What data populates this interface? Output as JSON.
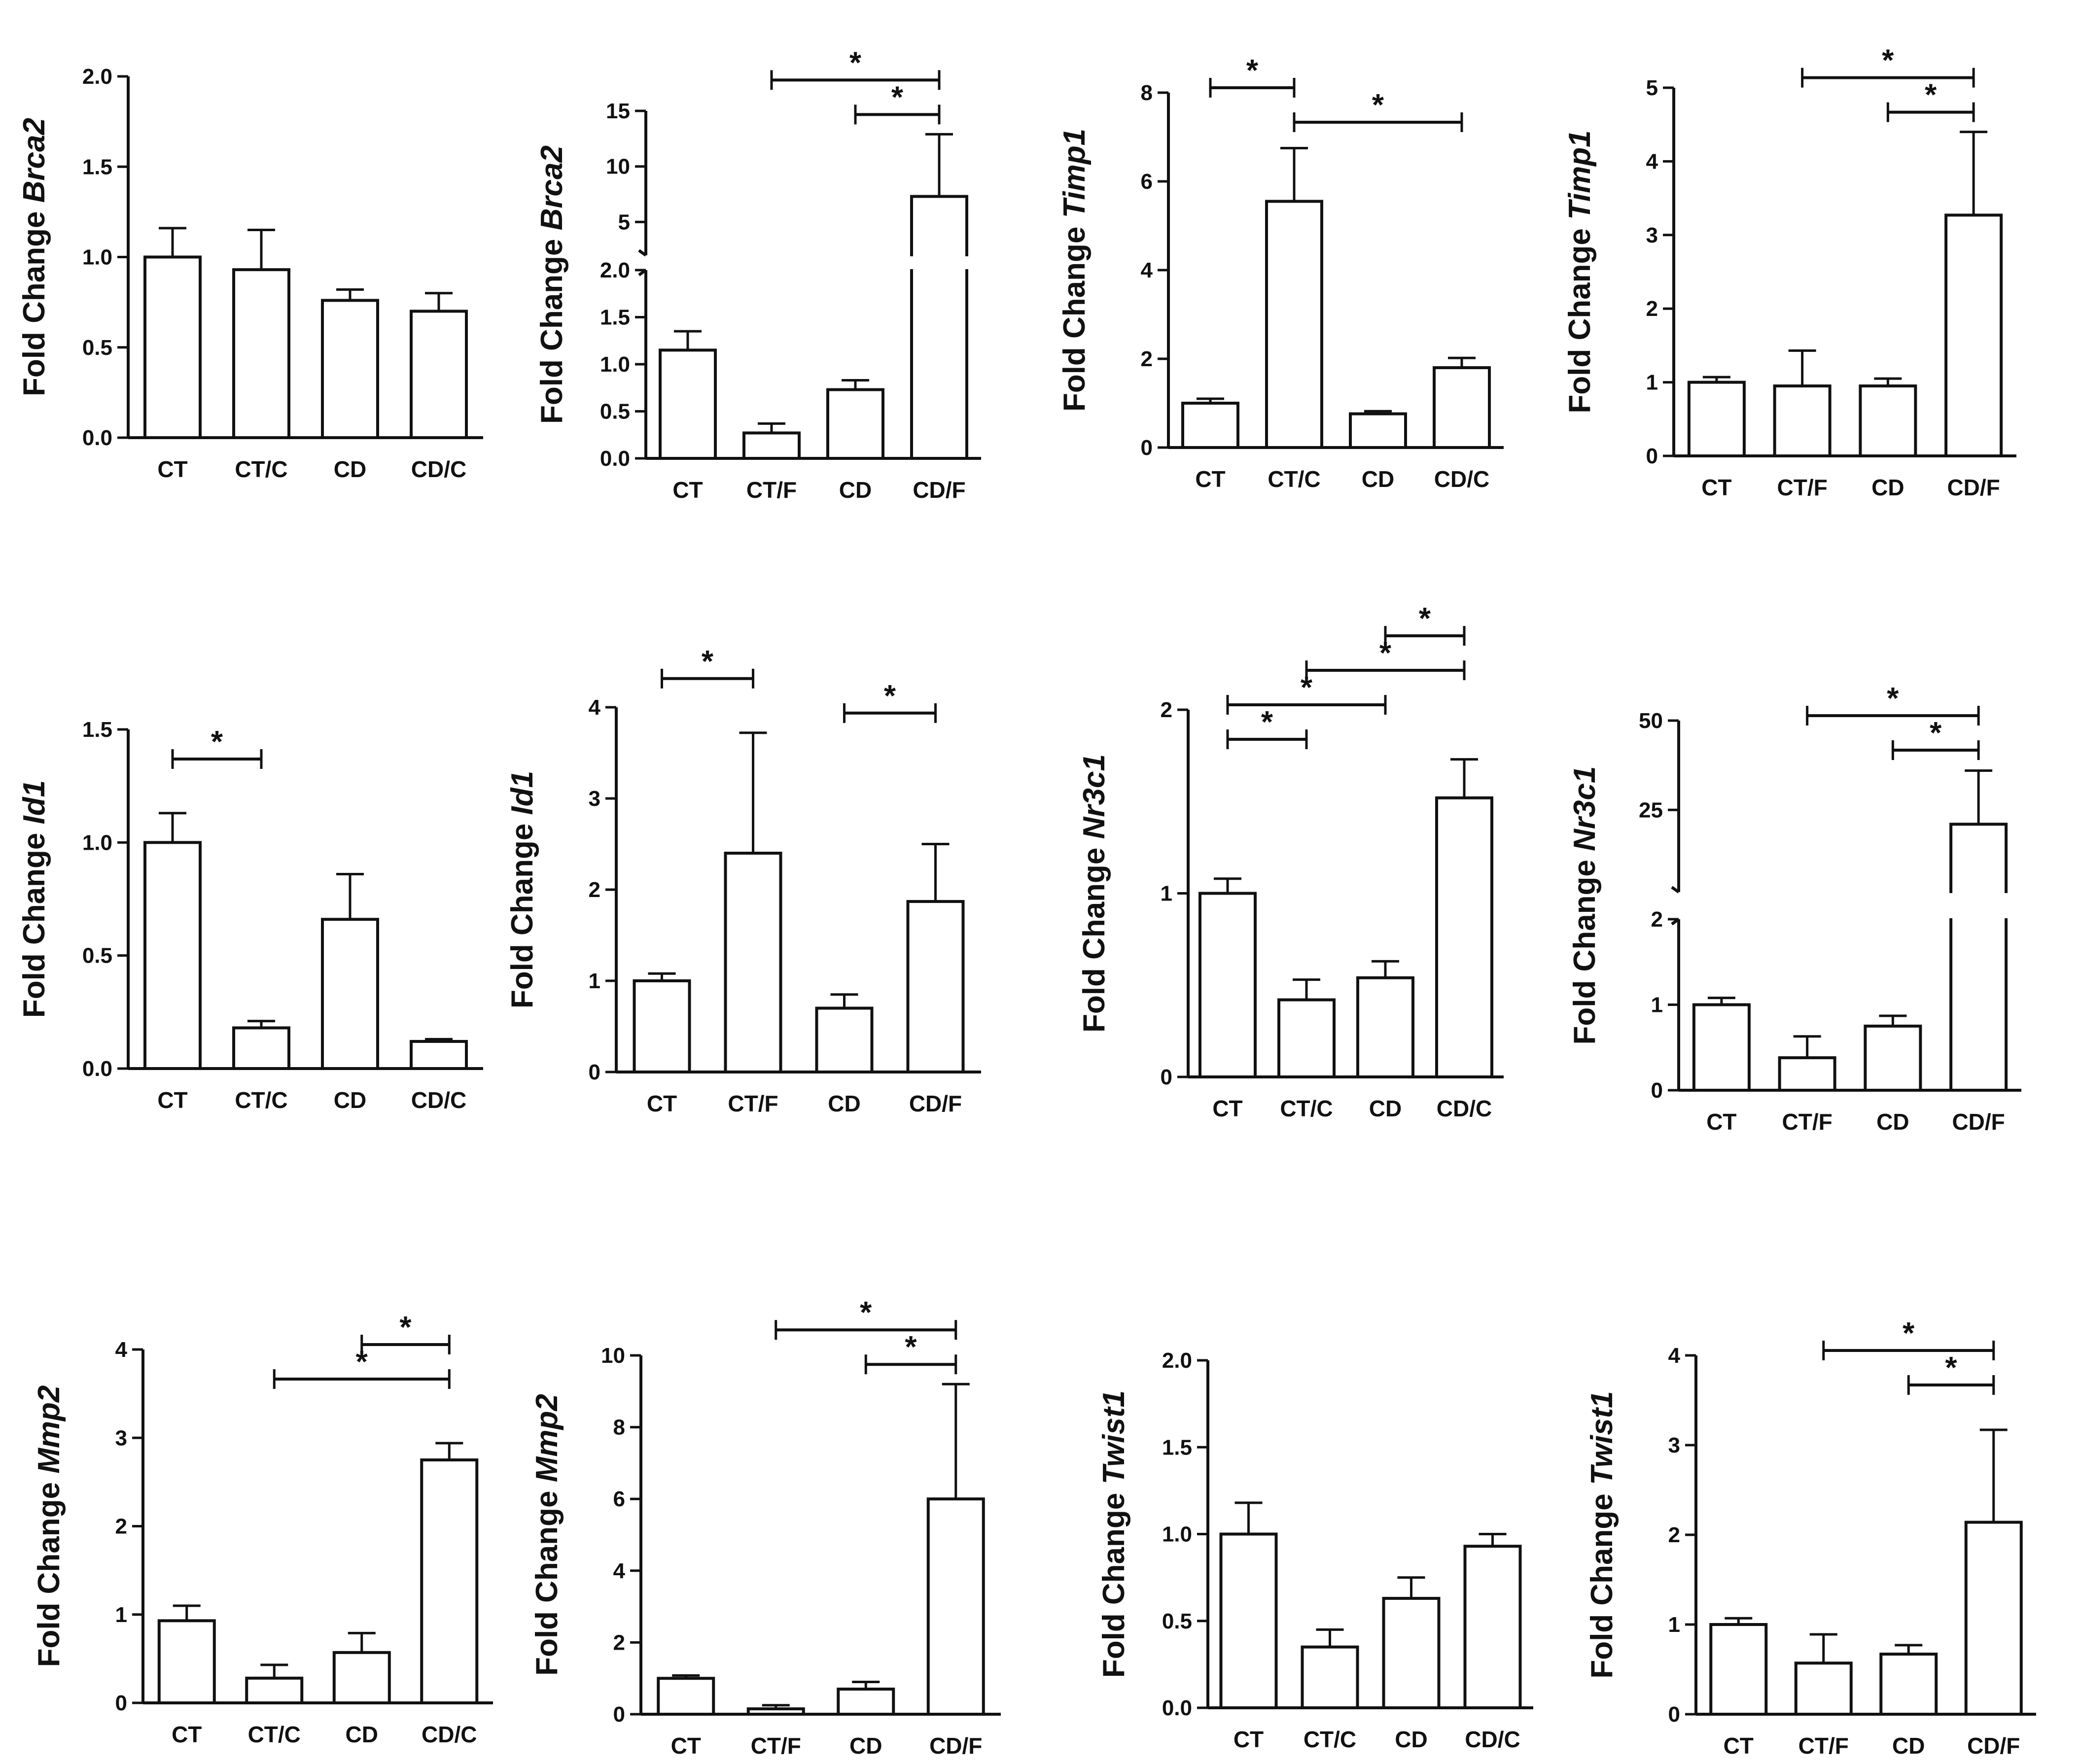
{
  "chart_data": [
    {
      "type": "bar",
      "ylabel_prefix": "Fold Change",
      "gene": "Brca2",
      "categories": [
        "CT",
        "CT/C",
        "CD",
        "CD/C"
      ],
      "values": [
        1.0,
        0.93,
        0.76,
        0.7
      ],
      "errors": [
        0.16,
        0.22,
        0.06,
        0.1
      ],
      "ylim": [
        0,
        2.0
      ],
      "ticks": [
        "0.0",
        "0.5",
        "1.0",
        "1.5",
        "2.0"
      ],
      "significance": []
    },
    {
      "type": "bar",
      "ylabel_prefix": "Fold Change",
      "gene": "Brca2",
      "categories": [
        "CT",
        "CT/F",
        "CD",
        "CD/F"
      ],
      "values": [
        1.15,
        0.27,
        0.73,
        7.3
      ],
      "errors": [
        0.2,
        0.1,
        0.1,
        5.6
      ],
      "axis_break": {
        "lower": [
          0,
          2.0
        ],
        "upper": [
          2.0,
          15
        ]
      },
      "ticks_lower": [
        "0.0",
        "0.5",
        "1.0",
        "1.5",
        "2.0"
      ],
      "ticks_upper": [
        "5",
        "10",
        "15"
      ],
      "significance": [
        {
          "from": 1,
          "to": 3,
          "label": "*"
        },
        {
          "from": 2,
          "to": 3,
          "label": "*"
        }
      ]
    },
    {
      "type": "bar",
      "ylabel_prefix": "Fold Change",
      "gene": "Timp1",
      "categories": [
        "CT",
        "CT/C",
        "CD",
        "CD/C"
      ],
      "values": [
        1.0,
        5.55,
        0.76,
        1.8
      ],
      "errors": [
        0.1,
        1.2,
        0.06,
        0.22
      ],
      "ylim": [
        0,
        8
      ],
      "ticks": [
        "0",
        "2",
        "4",
        "6",
        "8"
      ],
      "significance": [
        {
          "from": 0,
          "to": 1,
          "label": "*"
        },
        {
          "from": 1,
          "to": 3,
          "label": "*"
        }
      ]
    },
    {
      "type": "bar",
      "ylabel_prefix": "Fold Change",
      "gene": "Timp1",
      "categories": [
        "CT",
        "CT/F",
        "CD",
        "CD/F"
      ],
      "values": [
        1.0,
        0.95,
        0.95,
        3.27
      ],
      "errors": [
        0.07,
        0.48,
        0.1,
        1.13
      ],
      "ylim": [
        0,
        5
      ],
      "ticks": [
        "0",
        "1",
        "2",
        "3",
        "4",
        "5"
      ],
      "significance": [
        {
          "from": 1,
          "to": 3,
          "label": "*"
        },
        {
          "from": 2,
          "to": 3,
          "label": "*"
        }
      ]
    },
    {
      "type": "bar",
      "ylabel_prefix": "Fold Change",
      "gene": "Id1",
      "categories": [
        "CT",
        "CT/C",
        "CD",
        "CD/C"
      ],
      "values": [
        1.0,
        0.18,
        0.66,
        0.12
      ],
      "errors": [
        0.13,
        0.03,
        0.2,
        0.01
      ],
      "ylim": [
        0,
        1.5
      ],
      "ticks": [
        "0.0",
        "0.5",
        "1.0",
        "1.5"
      ],
      "significance": [
        {
          "from": 0,
          "to": 1,
          "label": "*"
        }
      ]
    },
    {
      "type": "bar",
      "ylabel_prefix": "Fold Change",
      "gene": "Id1",
      "categories": [
        "CT",
        "CT/F",
        "CD",
        "CD/F"
      ],
      "values": [
        1.0,
        2.4,
        0.7,
        1.87
      ],
      "errors": [
        0.08,
        1.32,
        0.15,
        0.63
      ],
      "ylim": [
        0,
        4
      ],
      "ticks": [
        "0",
        "1",
        "2",
        "3",
        "4"
      ],
      "significance": [
        {
          "from": 0,
          "to": 1,
          "label": "*"
        },
        {
          "from": 2,
          "to": 3,
          "label": "*"
        }
      ]
    },
    {
      "type": "bar",
      "ylabel_prefix": "Fold Change",
      "gene": "Nr3c1",
      "categories": [
        "CT",
        "CT/C",
        "CD",
        "CD/C"
      ],
      "values": [
        1.0,
        0.42,
        0.54,
        1.52
      ],
      "errors": [
        0.08,
        0.11,
        0.09,
        0.21
      ],
      "ylim": [
        0,
        2
      ],
      "ticks": [
        "0",
        "1",
        "2"
      ],
      "significance": [
        {
          "from": 2,
          "to": 3,
          "label": "*"
        },
        {
          "from": 1,
          "to": 3,
          "label": "*"
        },
        {
          "from": 0,
          "to": 2,
          "label": "*"
        },
        {
          "from": 0,
          "to": 1,
          "label": "*"
        }
      ]
    },
    {
      "type": "bar",
      "ylabel_prefix": "Fold Change",
      "gene": "Nr3c1",
      "categories": [
        "CT",
        "CT/F",
        "CD",
        "CD/F"
      ],
      "values": [
        1.0,
        0.38,
        0.75,
        21.0
      ],
      "errors": [
        0.08,
        0.25,
        0.12,
        15.0
      ],
      "axis_break": {
        "lower": [
          0,
          2
        ],
        "upper": [
          2,
          50
        ]
      },
      "ticks_lower": [
        "0",
        "1",
        "2"
      ],
      "ticks_upper": [
        "25",
        "50"
      ],
      "significance": [
        {
          "from": 1,
          "to": 3,
          "label": "*"
        },
        {
          "from": 2,
          "to": 3,
          "label": "*"
        }
      ]
    },
    {
      "type": "bar",
      "ylabel_prefix": "Fold Change",
      "gene": "Mmp2",
      "categories": [
        "CT",
        "CT/C",
        "CD",
        "CD/C"
      ],
      "values": [
        0.93,
        0.28,
        0.57,
        2.75
      ],
      "errors": [
        0.17,
        0.15,
        0.22,
        0.19
      ],
      "ylim": [
        0,
        4
      ],
      "ticks": [
        "0",
        "1",
        "2",
        "3",
        "4"
      ],
      "significance": [
        {
          "from": 2,
          "to": 3,
          "label": "*"
        },
        {
          "from": 1,
          "to": 3,
          "label": "*"
        }
      ]
    },
    {
      "type": "bar",
      "ylabel_prefix": "Fold Change",
      "gene": "Mmp2",
      "categories": [
        "CT",
        "CT/F",
        "CD",
        "CD/F"
      ],
      "values": [
        1.0,
        0.15,
        0.7,
        6.0
      ],
      "errors": [
        0.08,
        0.1,
        0.2,
        3.2
      ],
      "ylim": [
        0,
        10
      ],
      "ticks": [
        "0",
        "2",
        "4",
        "6",
        "8",
        "10"
      ],
      "significance": [
        {
          "from": 1,
          "to": 3,
          "label": "*"
        },
        {
          "from": 2,
          "to": 3,
          "label": "*"
        }
      ]
    },
    {
      "type": "bar",
      "ylabel_prefix": "Fold Change",
      "gene": "Twist1",
      "categories": [
        "CT",
        "CT/C",
        "CD",
        "CD/C"
      ],
      "values": [
        1.0,
        0.35,
        0.63,
        0.93
      ],
      "errors": [
        0.18,
        0.1,
        0.12,
        0.07
      ],
      "ylim": [
        0,
        2.0
      ],
      "ticks": [
        "0.0",
        "0.5",
        "1.0",
        "1.5",
        "2.0"
      ],
      "significance": []
    },
    {
      "type": "bar",
      "ylabel_prefix": "Fold Change",
      "gene": "Twist1",
      "categories": [
        "CT",
        "CT/F",
        "CD",
        "CD/F"
      ],
      "values": [
        1.0,
        0.57,
        0.67,
        2.14
      ],
      "errors": [
        0.07,
        0.32,
        0.1,
        1.03
      ],
      "ylim": [
        0,
        4
      ],
      "ticks": [
        "0",
        "1",
        "2",
        "3",
        "4"
      ],
      "significance": [
        {
          "from": 1,
          "to": 3,
          "label": "*"
        },
        {
          "from": 2,
          "to": 3,
          "label": "*"
        }
      ]
    }
  ]
}
